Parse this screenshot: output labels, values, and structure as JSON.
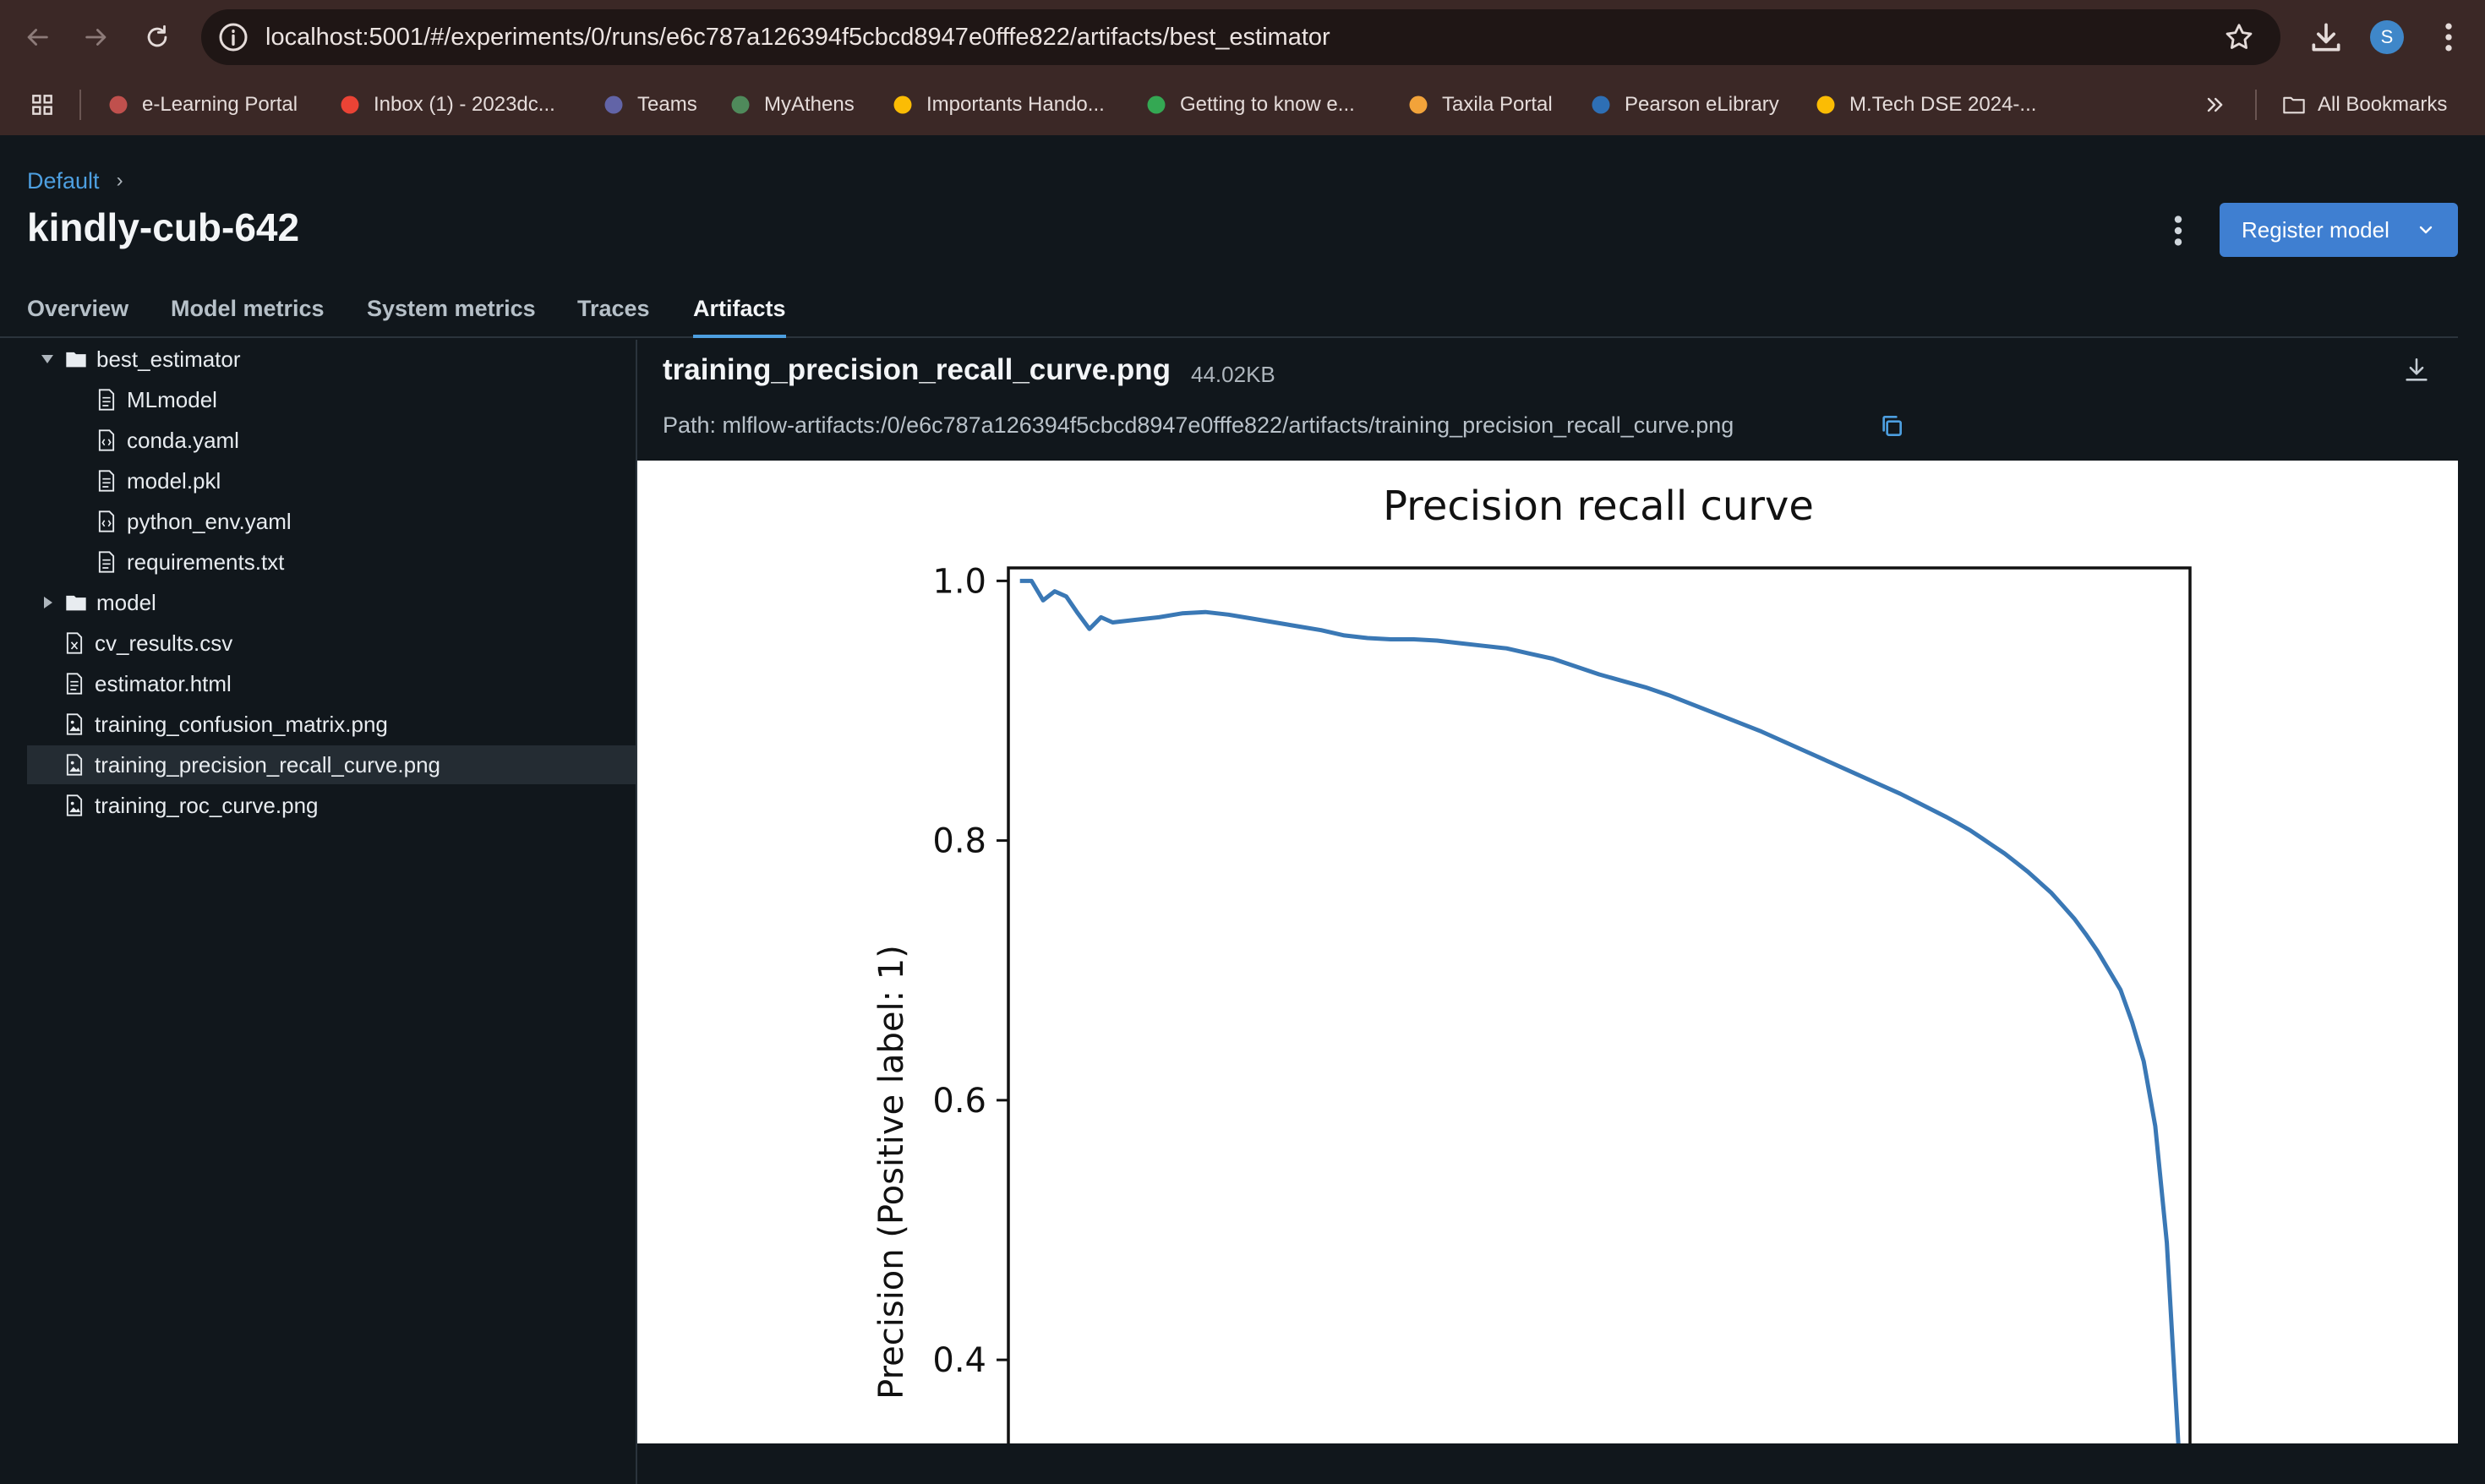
{
  "browser": {
    "url": "localhost:5001/#/experiments/0/runs/e6c787a126394f5cbcd8947e0fffe822/artifacts/best_estimator",
    "profile_initial": "S",
    "bookmarks": [
      {
        "label": "e-Learning Portal",
        "icon": "shield-logo-icon",
        "color": "#c0504d"
      },
      {
        "label": "Inbox (1) - 2023dc...",
        "icon": "gmail-icon",
        "color": "#ea4335"
      },
      {
        "label": "Teams",
        "icon": "teams-icon",
        "color": "#6264a7"
      },
      {
        "label": "MyAthens",
        "icon": "athens-icon",
        "color": "#4f8a5b"
      },
      {
        "label": "Importants Hando...",
        "icon": "drive-icon",
        "color": "#fbbc04"
      },
      {
        "label": "Getting to know e...",
        "icon": "sheets-icon",
        "color": "#34a853"
      },
      {
        "label": "Taxila Portal",
        "icon": "taxila-icon",
        "color": "#f2a33a"
      },
      {
        "label": "Pearson eLibrary",
        "icon": "pearson-icon",
        "color": "#2e6fb5"
      },
      {
        "label": "M.Tech DSE 2024-...",
        "icon": "drive-icon",
        "color": "#fbbc04"
      }
    ],
    "all_bookmarks": "All Bookmarks"
  },
  "breadcrumb": {
    "root": "Default"
  },
  "run": {
    "title": "kindly-cub-642",
    "register_label": "Register model"
  },
  "tabs": [
    {
      "label": "Overview",
      "active": false
    },
    {
      "label": "Model metrics",
      "active": false
    },
    {
      "label": "System metrics",
      "active": false
    },
    {
      "label": "Traces",
      "active": false
    },
    {
      "label": "Artifacts",
      "active": true
    }
  ],
  "tree": [
    {
      "label": "best_estimator",
      "type": "folder",
      "depth": 0,
      "expanded": true
    },
    {
      "label": "MLmodel",
      "type": "file",
      "depth": 1
    },
    {
      "label": "conda.yaml",
      "type": "code",
      "depth": 1
    },
    {
      "label": "model.pkl",
      "type": "file",
      "depth": 1
    },
    {
      "label": "python_env.yaml",
      "type": "code",
      "depth": 1
    },
    {
      "label": "requirements.txt",
      "type": "file",
      "depth": 1
    },
    {
      "label": "model",
      "type": "folder",
      "depth": 0,
      "expanded": false
    },
    {
      "label": "cv_results.csv",
      "type": "csv",
      "depth": 0
    },
    {
      "label": "estimator.html",
      "type": "file",
      "depth": 0
    },
    {
      "label": "training_confusion_matrix.png",
      "type": "image",
      "depth": 0
    },
    {
      "label": "training_precision_recall_curve.png",
      "type": "image",
      "depth": 0,
      "selected": true
    },
    {
      "label": "training_roc_curve.png",
      "type": "image",
      "depth": 0
    }
  ],
  "artifact": {
    "name": "training_precision_recall_curve.png",
    "size": "44.02KB",
    "path": "Path: mlflow-artifacts:/0/e6c787a126394f5cbcd8947e0fffe822/artifacts/training_precision_recall_curve.png"
  },
  "chart_data": {
    "type": "line",
    "title": "Precision recall curve",
    "xlabel": "",
    "ylabel": "Precision (Positive label: 1)",
    "yticks": [
      1.0,
      0.8,
      0.6,
      0.4
    ],
    "ytick_labels": [
      "1.0",
      "0.8",
      "0.6",
      "0.4"
    ],
    "xlim": [
      0,
      1
    ],
    "ylim": [
      0.32,
      1.01
    ],
    "grid": false,
    "color": "#3a78b5",
    "series": [
      {
        "x": [
          1.0,
          0.99,
          0.98,
          0.97,
          0.96,
          0.95,
          0.94,
          0.93,
          0.92,
          0.91,
          0.9,
          0.89,
          0.88,
          0.87,
          0.86,
          0.85,
          0.84,
          0.83,
          0.82,
          0.81,
          0.8,
          0.78,
          0.76,
          0.74,
          0.72,
          0.7,
          0.68,
          0.66,
          0.64,
          0.62,
          0.6,
          0.58,
          0.56,
          0.54,
          0.52,
          0.5,
          0.48,
          0.46,
          0.44,
          0.42,
          0.4,
          0.38,
          0.36,
          0.34,
          0.32,
          0.3,
          0.28,
          0.26,
          0.24,
          0.22,
          0.2,
          0.18,
          0.16,
          0.14,
          0.12,
          0.1,
          0.08,
          0.07,
          0.06,
          0.05,
          0.04,
          0.03,
          0.02,
          0.01,
          0.0
        ],
        "y": [
          0.334,
          0.49,
          0.58,
          0.63,
          0.66,
          0.685,
          0.7,
          0.715,
          0.728,
          0.74,
          0.75,
          0.76,
          0.768,
          0.776,
          0.783,
          0.79,
          0.796,
          0.802,
          0.808,
          0.813,
          0.818,
          0.827,
          0.836,
          0.844,
          0.852,
          0.86,
          0.868,
          0.876,
          0.884,
          0.891,
          0.898,
          0.905,
          0.912,
          0.918,
          0.923,
          0.928,
          0.934,
          0.94,
          0.944,
          0.948,
          0.95,
          0.952,
          0.954,
          0.955,
          0.955,
          0.956,
          0.958,
          0.962,
          0.965,
          0.968,
          0.971,
          0.974,
          0.976,
          0.975,
          0.972,
          0.97,
          0.968,
          0.972,
          0.963,
          0.975,
          0.988,
          0.992,
          0.985,
          1.0,
          1.0
        ]
      }
    ]
  }
}
